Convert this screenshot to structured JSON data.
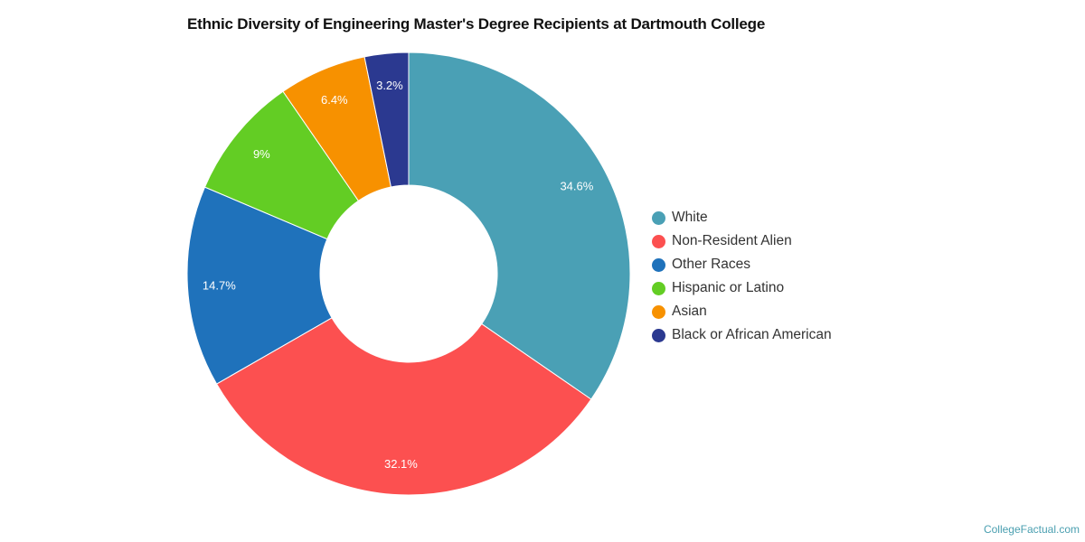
{
  "title": "Ethnic Diversity of Engineering Master's Degree Recipients at Dartmouth College",
  "credit": "CollegeFactual.com",
  "chart_data": {
    "type": "pie",
    "variant": "donut",
    "title": "Ethnic Diversity of Engineering Master's Degree Recipients at Dartmouth College",
    "categories": [
      "White",
      "Non-Resident Alien",
      "Other Races",
      "Hispanic or Latino",
      "Asian",
      "Black or African American"
    ],
    "values": [
      34.6,
      32.1,
      14.7,
      9,
      6.4,
      3.2
    ],
    "labels": [
      "34.6%",
      "32.1%",
      "14.7%",
      "9%",
      "6.4%",
      "3.2%"
    ],
    "colors": [
      "#4aa0b5",
      "#fc5050",
      "#1f72bb",
      "#63cd24",
      "#f79100",
      "#2b3990"
    ],
    "legend_position": "right"
  },
  "legend": [
    {
      "label": "White",
      "color": "#4aa0b5"
    },
    {
      "label": "Non-Resident Alien",
      "color": "#fc5050"
    },
    {
      "label": "Other Races",
      "color": "#1f72bb"
    },
    {
      "label": "Hispanic or Latino",
      "color": "#63cd24"
    },
    {
      "label": "Asian",
      "color": "#f79100"
    },
    {
      "label": "Black or African American",
      "color": "#2b3990"
    }
  ]
}
